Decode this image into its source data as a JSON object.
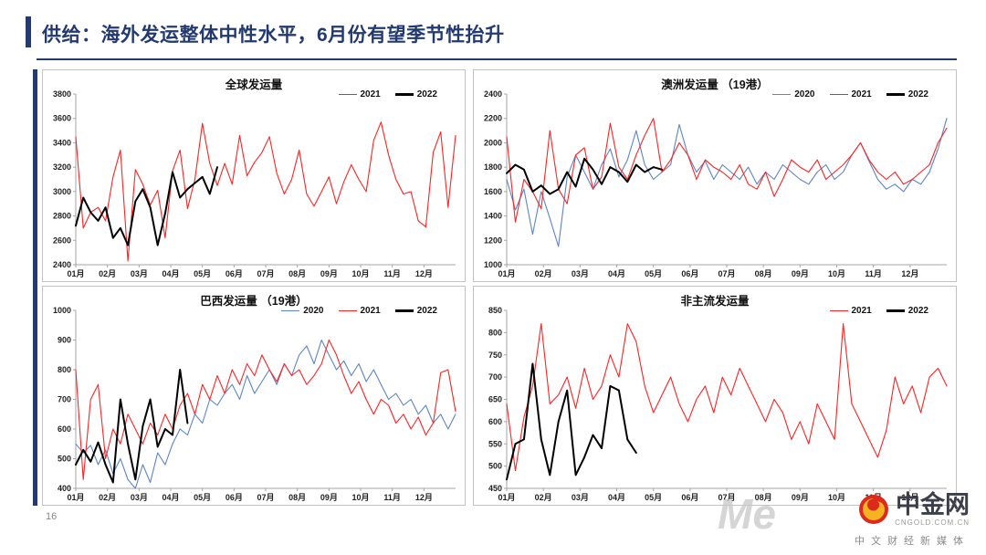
{
  "header": {
    "title": "供给：海外发运整体中性水平，6月份有望季节性抬升"
  },
  "footer": {
    "page_number": "16",
    "watermark": "Me",
    "logo": {
      "name": "中金网",
      "domain": "CNGOLD.COM.CN",
      "tagline": "中文财经新媒体"
    }
  },
  "colors": {
    "accent": "#233a70",
    "red": "#ff2222",
    "black": "#000000",
    "blue": "#5b84c7"
  },
  "months": [
    "01月",
    "02月",
    "03月",
    "04月",
    "05月",
    "06月",
    "07月",
    "08月",
    "09月",
    "10月",
    "11月",
    "12月"
  ],
  "chart_data": [
    {
      "type": "line",
      "title": "全球发运量",
      "ylim": [
        2400,
        3800
      ],
      "ytick": 200,
      "xlabel": "",
      "ylabel": "",
      "legend_position": "top-right",
      "grid": false,
      "series": [
        {
          "name": "2021",
          "color": "red",
          "values": [
            3450,
            2700,
            2830,
            2870,
            2760,
            3120,
            3340,
            2430,
            3180,
            3060,
            2890,
            3010,
            2620,
            3170,
            3340,
            2860,
            3100,
            3560,
            3230,
            3050,
            3230,
            3060,
            3460,
            3130,
            3240,
            3320,
            3450,
            3150,
            2980,
            3100,
            3340,
            2980,
            2880,
            3000,
            3120,
            2900,
            3080,
            3220,
            3100,
            3000,
            3420,
            3570,
            3300,
            3100,
            2980,
            3000,
            2760,
            2710,
            3320,
            3490,
            2870,
            3460
          ]
        },
        {
          "name": "2022",
          "color": "black",
          "values": [
            2720,
            2950,
            2830,
            2760,
            2870,
            2620,
            2700,
            2560,
            2920,
            3020,
            2870,
            2560,
            2820,
            3160,
            2950,
            3020,
            3070,
            3120,
            2980,
            3200
          ]
        }
      ]
    },
    {
      "type": "line",
      "title": "澳洲发运量 （19港）",
      "ylim": [
        1000,
        2400
      ],
      "ytick": 200,
      "xlabel": "",
      "ylabel": "",
      "legend_position": "top-right",
      "grid": false,
      "series": [
        {
          "name": "2020",
          "color": "blue",
          "values": [
            1700,
            1450,
            1620,
            1250,
            1600,
            1380,
            1150,
            1720,
            1900,
            1760,
            1620,
            1820,
            1950,
            1720,
            1860,
            2100,
            1820,
            1700,
            1760,
            1820,
            2150,
            1900,
            1760,
            1850,
            1700,
            1820,
            1760,
            1700,
            1800,
            1660,
            1760,
            1700,
            1820,
            1760,
            1700,
            1660,
            1760,
            1820,
            1700,
            1760,
            1900,
            2000,
            1850,
            1700,
            1620,
            1660,
            1600,
            1700,
            1660,
            1760,
            1950,
            2200
          ]
        },
        {
          "name": "2021",
          "color": "red",
          "values": [
            2050,
            1350,
            1700,
            1600,
            1460,
            2100,
            1620,
            1500,
            1900,
            1960,
            1620,
            1720,
            2160,
            1800,
            1700,
            1900,
            2060,
            2200,
            1760,
            1860,
            2000,
            1900,
            1700,
            1860,
            1800,
            1760,
            1700,
            1820,
            1660,
            1620,
            1760,
            1560,
            1700,
            1860,
            1800,
            1760,
            1860,
            1700,
            1760,
            1820,
            1900,
            2000,
            1860,
            1760,
            1700,
            1760,
            1660,
            1700,
            1760,
            1820,
            2000,
            2120
          ]
        },
        {
          "name": "2022",
          "color": "black",
          "values": [
            1750,
            1820,
            1780,
            1600,
            1650,
            1580,
            1620,
            1760,
            1640,
            1870,
            1780,
            1660,
            1800,
            1760,
            1680,
            1820,
            1760,
            1800,
            1780
          ]
        }
      ]
    },
    {
      "type": "line",
      "title": "巴西发运量 （19港）",
      "ylim": [
        400,
        1000
      ],
      "ytick": 100,
      "xlabel": "",
      "ylabel": "",
      "legend_position": "top-right",
      "grid": false,
      "series": [
        {
          "name": "2020",
          "color": "blue",
          "values": [
            550,
            520,
            545,
            480,
            530,
            450,
            500,
            430,
            400,
            480,
            420,
            520,
            480,
            550,
            600,
            580,
            650,
            620,
            700,
            680,
            720,
            750,
            700,
            780,
            720,
            760,
            800,
            750,
            820,
            780,
            850,
            880,
            820,
            900,
            850,
            800,
            830,
            780,
            820,
            760,
            800,
            750,
            700,
            720,
            680,
            700,
            650,
            680,
            620,
            650,
            600,
            650
          ]
        },
        {
          "name": "2021",
          "color": "red",
          "values": [
            800,
            430,
            700,
            750,
            500,
            600,
            550,
            650,
            600,
            550,
            620,
            580,
            650,
            600,
            680,
            720,
            650,
            750,
            700,
            780,
            720,
            800,
            750,
            820,
            780,
            850,
            800,
            760,
            820,
            780,
            800,
            750,
            780,
            820,
            900,
            850,
            780,
            720,
            760,
            700,
            650,
            700,
            680,
            620,
            650,
            600,
            640,
            580,
            620,
            790,
            800,
            660
          ]
        },
        {
          "name": "2022",
          "color": "black",
          "values": [
            480,
            530,
            490,
            555,
            480,
            420,
            700,
            550,
            430,
            610,
            700,
            540,
            600,
            580,
            800,
            620
          ]
        }
      ]
    },
    {
      "type": "line",
      "title": "非主流发运量",
      "ylim": [
        450,
        850
      ],
      "ytick": 50,
      "xlabel": "",
      "ylabel": "",
      "legend_position": "top-right",
      "grid": false,
      "series": [
        {
          "name": "2021",
          "color": "red",
          "values": [
            640,
            490,
            610,
            680,
            820,
            640,
            660,
            700,
            630,
            720,
            650,
            680,
            750,
            700,
            820,
            780,
            680,
            620,
            660,
            700,
            640,
            600,
            650,
            680,
            620,
            700,
            660,
            720,
            680,
            640,
            600,
            650,
            620,
            560,
            600,
            550,
            640,
            600,
            560,
            820,
            640,
            600,
            560,
            520,
            580,
            700,
            640,
            680,
            620,
            700,
            720,
            680
          ]
        },
        {
          "name": "2022",
          "color": "black",
          "values": [
            470,
            550,
            560,
            730,
            560,
            480,
            600,
            670,
            480,
            520,
            570,
            540,
            680,
            670,
            560,
            530
          ]
        }
      ]
    }
  ]
}
